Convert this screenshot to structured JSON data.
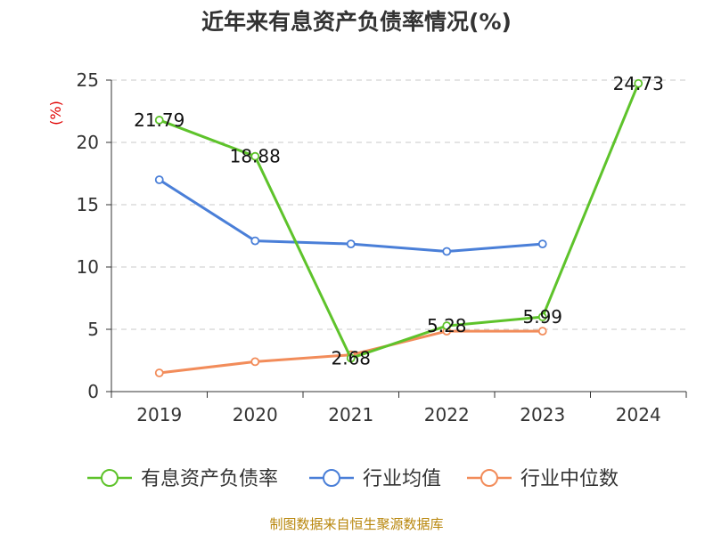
{
  "chart_data": {
    "type": "line",
    "title": "近年来有息资产负债率情况(%)",
    "ylabel": "(%)",
    "categories": [
      "2019",
      "2020",
      "2021",
      "2022",
      "2023",
      "2024"
    ],
    "ylim": [
      0,
      25
    ],
    "yticks": [
      0,
      5,
      10,
      15,
      20,
      25
    ],
    "grid": true,
    "legend_position": "bottom",
    "series": [
      {
        "name": "有息资产负债率",
        "color": "#5ec32b",
        "values": [
          21.79,
          18.88,
          2.68,
          5.28,
          5.99,
          24.73
        ],
        "labels": [
          "21.79",
          "18.88",
          "2.68",
          "5.28",
          "5.99",
          "24.73"
        ]
      },
      {
        "name": "行业均值",
        "color": "#4a7fd8",
        "values": [
          17.0,
          12.1,
          11.85,
          11.25,
          11.85,
          null
        ]
      },
      {
        "name": "行业中位数",
        "color": "#f28c5a",
        "values": [
          1.5,
          2.4,
          2.95,
          4.85,
          4.85,
          null
        ]
      }
    ]
  },
  "source": "制图数据来自恒生聚源数据库"
}
